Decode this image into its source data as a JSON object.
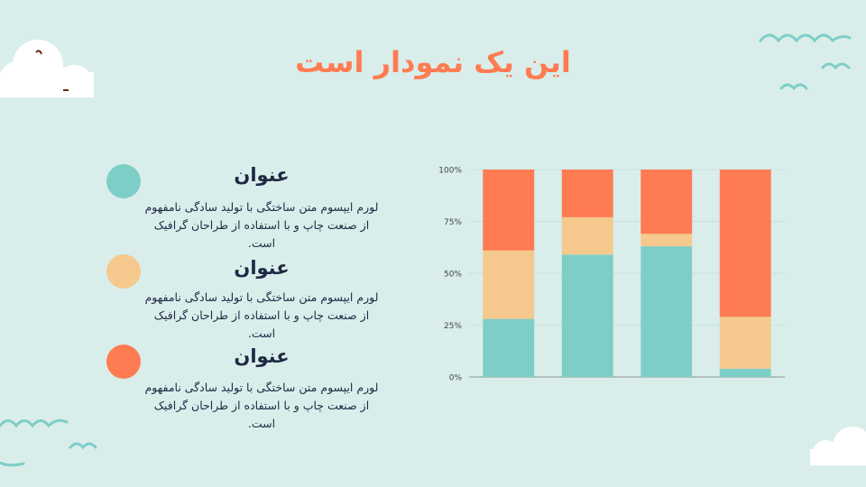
{
  "slide": {
    "title": "این یک نمودار است",
    "colors": {
      "teal": "#7ecec8",
      "peach": "#f5c98d",
      "orange": "#ff7b52",
      "text": "#1e2a44",
      "background": "#d9eeeb"
    }
  },
  "items": [
    {
      "title": "عنوان",
      "body": "لورم ایپسوم متن ساختگی با تولید سادگی نامفهوم از صنعت چاپ و با استفاده از طراحان گرافیک است.",
      "color": "#7ecec8"
    },
    {
      "title": "عنوان",
      "body": "لورم ایپسوم متن ساختگی با تولید سادگی نامفهوم از صنعت چاپ و با استفاده از طراحان گرافیک است.",
      "color": "#f5c98d"
    },
    {
      "title": "عنوان",
      "body": "لورم ایپسوم متن ساختگی با تولید سادگی نامفهوم از صنعت چاپ و با استفاده از طراحان گرافیک است.",
      "color": "#ff7b52"
    }
  ],
  "chart_data": {
    "type": "bar",
    "stacked": true,
    "percent": true,
    "categories": [
      "",
      "",
      "",
      ""
    ],
    "series": [
      {
        "values": [
          28,
          59,
          63,
          4
        ],
        "color": "#7ecec8"
      },
      {
        "values": [
          33,
          18,
          6,
          25
        ],
        "color": "#f5c98d"
      },
      {
        "values": [
          39,
          23,
          31,
          71
        ],
        "color": "#ff7b52"
      }
    ],
    "ylim": [
      0,
      100
    ],
    "yticks": [
      "0%",
      "25%",
      "50%",
      "75%",
      "100%"
    ],
    "grid": true,
    "legend": "none"
  }
}
